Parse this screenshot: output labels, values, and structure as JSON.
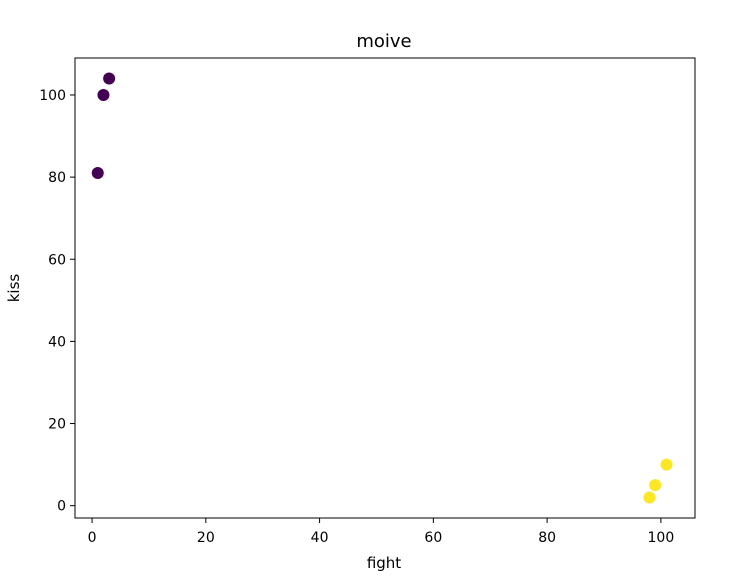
{
  "chart_data": {
    "type": "scatter",
    "title": "moive",
    "xlabel": "fight",
    "ylabel": "kiss",
    "xlim": [
      -3.0,
      106.0
    ],
    "ylim": [
      -3.0,
      109.0
    ],
    "xticks": [
      0,
      20,
      40,
      60,
      80,
      100
    ],
    "yticks": [
      0,
      20,
      40,
      60,
      80,
      100
    ],
    "grid": false,
    "colormap_colors": {
      "low": "#440154",
      "high": "#fde725"
    },
    "points": [
      {
        "x": 3,
        "y": 104,
        "class": 0
      },
      {
        "x": 2,
        "y": 100,
        "class": 0
      },
      {
        "x": 1,
        "y": 81,
        "class": 0
      },
      {
        "x": 101,
        "y": 10,
        "class": 1
      },
      {
        "x": 99,
        "y": 5,
        "class": 1
      },
      {
        "x": 98,
        "y": 2,
        "class": 1
      }
    ]
  }
}
